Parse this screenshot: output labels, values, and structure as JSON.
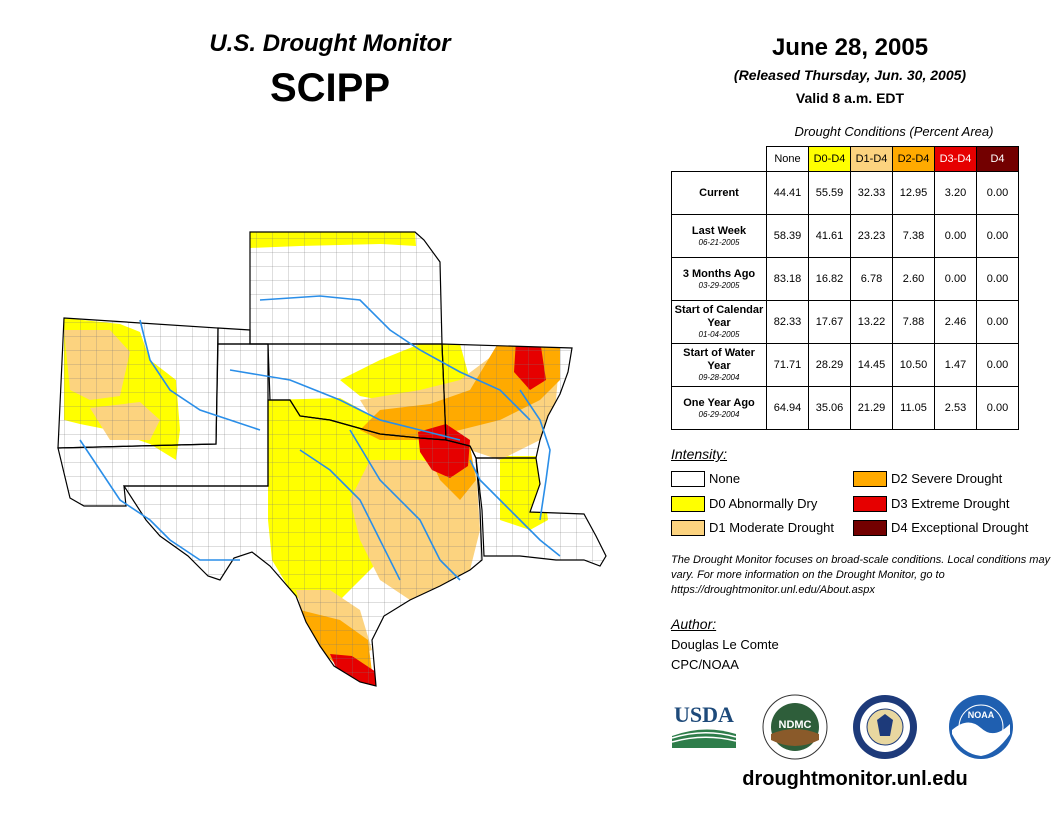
{
  "header": {
    "title": "U.S. Drought Monitor",
    "region": "SCIPP",
    "date": "June 28, 2005",
    "released": "(Released Thursday, Jun. 30, 2005)",
    "valid": "Valid 8 a.m. EDT"
  },
  "table": {
    "caption": "Drought Conditions (Percent Area)",
    "columns": [
      "None",
      "D0-D4",
      "D1-D4",
      "D2-D4",
      "D3-D4",
      "D4"
    ],
    "column_colors": [
      "#ffffff",
      "#ffff00",
      "#fcd37f",
      "#ffaa00",
      "#e60000",
      "#730000"
    ],
    "rows": [
      {
        "label": "Current",
        "sub": "",
        "values": [
          "44.41",
          "55.59",
          "32.33",
          "12.95",
          "3.20",
          "0.00"
        ]
      },
      {
        "label": "Last Week",
        "sub": "06-21-2005",
        "values": [
          "58.39",
          "41.61",
          "23.23",
          "7.38",
          "0.00",
          "0.00"
        ]
      },
      {
        "label": "3 Months Ago",
        "sub": "03-29-2005",
        "values": [
          "83.18",
          "16.82",
          "6.78",
          "2.60",
          "0.00",
          "0.00"
        ]
      },
      {
        "label": "Start of Calendar Year",
        "sub": "01-04-2005",
        "values": [
          "82.33",
          "17.67",
          "13.22",
          "7.88",
          "2.46",
          "0.00"
        ]
      },
      {
        "label": "Start of Water Year",
        "sub": "09-28-2004",
        "values": [
          "71.71",
          "28.29",
          "14.45",
          "10.50",
          "1.47",
          "0.00"
        ]
      },
      {
        "label": "One Year Ago",
        "sub": "06-29-2004",
        "values": [
          "64.94",
          "35.06",
          "21.29",
          "11.05",
          "2.53",
          "0.00"
        ]
      }
    ]
  },
  "legend": {
    "title": "Intensity:",
    "items": [
      {
        "label": "None",
        "color": "#ffffff"
      },
      {
        "label": "D0 Abnormally Dry",
        "color": "#ffff00"
      },
      {
        "label": "D1 Moderate Drought",
        "color": "#fcd37f"
      },
      {
        "label": "D2 Severe Drought",
        "color": "#ffaa00"
      },
      {
        "label": "D3 Extreme Drought",
        "color": "#e60000"
      },
      {
        "label": "D4 Exceptional Drought",
        "color": "#730000"
      }
    ]
  },
  "note": "The Drought Monitor focuses on broad-scale conditions. Local conditions may vary. For more information on the Drought Monitor, go to https://droughtmonitor.unl.edu/About.aspx",
  "author": {
    "title": "Author:",
    "name": "Douglas Le Comte",
    "org": "CPC/NOAA"
  },
  "logos": {
    "usda": "USDA",
    "ndmc": "NDMC",
    "noaa": "NOAA"
  },
  "website": "droughtmonitor.unl.edu"
}
